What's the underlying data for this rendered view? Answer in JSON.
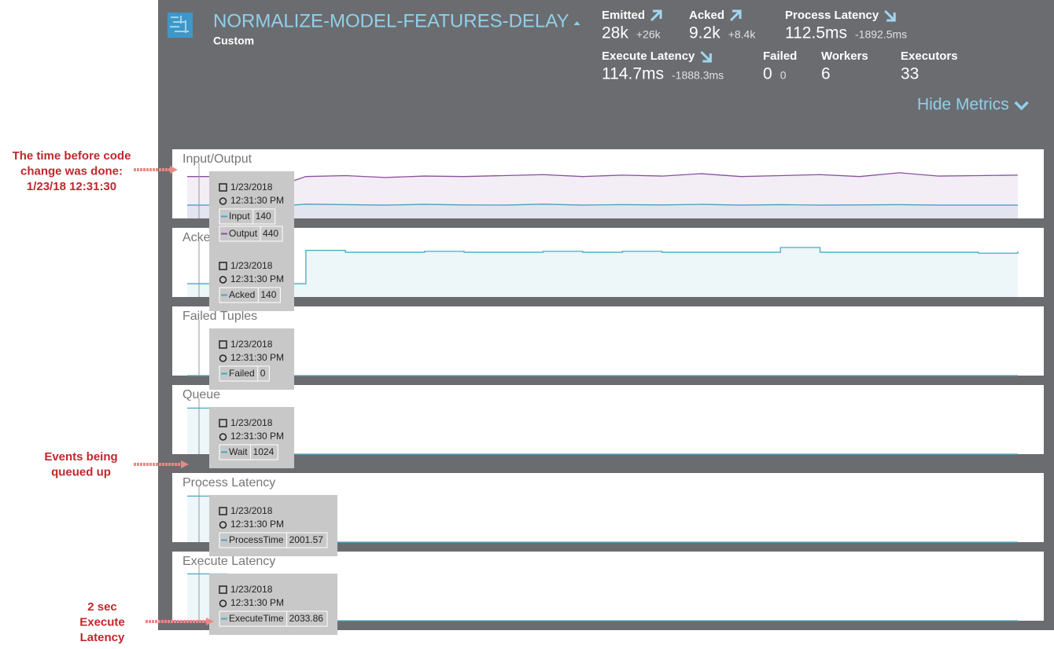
{
  "header": {
    "title": "NORMALIZE-MODEL-FEATURES-DELAY",
    "subtitle": "Custom",
    "toggle": "Hide Metrics"
  },
  "metrics": [
    {
      "label": "Emitted",
      "value": "28k",
      "delta": "+26k",
      "trend": "up"
    },
    {
      "label": "Acked",
      "value": "9.2k",
      "delta": "+8.4k",
      "trend": "up"
    },
    {
      "label": "Process Latency",
      "value": "112.5ms",
      "delta": "-1892.5ms",
      "trend": "down"
    },
    {
      "label": "Execute Latency",
      "value": "114.7ms",
      "delta": "-1888.3ms",
      "trend": "down"
    },
    {
      "label": "Failed",
      "value": "0",
      "delta": "0"
    },
    {
      "label": "Workers",
      "value": "6"
    },
    {
      "label": "Executors",
      "value": "33"
    }
  ],
  "panels": [
    {
      "title": "Input/Output",
      "tooltip": {
        "date": "1/23/2018",
        "time": "12:31:30 PM"
      },
      "ylim": [
        0,
        520
      ],
      "series": [
        {
          "name": "Input",
          "color": "#4aa8c4",
          "values": [
            140,
            140,
            120,
            150,
            145,
            140,
            148,
            142,
            140,
            150,
            140,
            145,
            142,
            148,
            140,
            145,
            140,
            142,
            145,
            140,
            140,
            140
          ]
        },
        {
          "name": "Output",
          "color": "#8a4fa0",
          "values": [
            440,
            440,
            300,
            440,
            450,
            430,
            445,
            440,
            450,
            460,
            440,
            455,
            445,
            470,
            440,
            450,
            460,
            440,
            480,
            445,
            450,
            455
          ]
        }
      ]
    },
    {
      "title": "Acked Tuples",
      "tooltip": {
        "date": "1/23/2018",
        "time": "12:31:30 PM"
      },
      "ylim": [
        0,
        520
      ],
      "step": true,
      "series": [
        {
          "name": "Acked",
          "color": "#4aa8c4",
          "values": [
            140,
            140,
            140,
            490,
            470,
            470,
            480,
            470,
            470,
            480,
            470,
            480,
            470,
            470,
            470,
            520,
            470,
            470,
            470,
            470,
            460,
            480
          ]
        }
      ]
    },
    {
      "title": "Failed Tuples",
      "tooltip": {
        "date": "1/23/2018",
        "time": "12:31:30 PM"
      },
      "ylim": [
        0,
        10
      ],
      "series": [
        {
          "name": "Failed",
          "color": "#4aa8c4",
          "values": [
            0,
            0,
            0,
            0,
            0,
            0,
            0,
            0,
            0,
            0,
            0,
            0,
            0,
            0,
            0,
            0,
            0,
            0,
            0,
            0,
            0,
            0
          ]
        }
      ]
    },
    {
      "title": "Queue",
      "tooltip": {
        "date": "1/23/2018",
        "time": "12:31:30 PM"
      },
      "ylim": [
        0,
        1100
      ],
      "series": [
        {
          "name": "Wait",
          "color": "#4aa8c4",
          "values": [
            1024,
            1024,
            0,
            0,
            0,
            0,
            0,
            0,
            0,
            0,
            0,
            0,
            0,
            0,
            0,
            0,
            0,
            0,
            0,
            0,
            0,
            0
          ]
        }
      ]
    },
    {
      "title": "Process Latency",
      "tooltip": {
        "date": "1/23/2018",
        "time": "12:31:30 PM"
      },
      "ylim": [
        0,
        2150
      ],
      "series": [
        {
          "name": "ProcessTime",
          "color": "#4aa8c4",
          "values": [
            2001.57,
            2001.57,
            0,
            0,
            0,
            0,
            0,
            0,
            0,
            0,
            0,
            0,
            0,
            0,
            0,
            0,
            0,
            0,
            0,
            0,
            0,
            0
          ]
        }
      ]
    },
    {
      "title": "Execute Latency",
      "tooltip": {
        "date": "1/23/2018",
        "time": "12:31:30 PM"
      },
      "ylim": [
        0,
        2150
      ],
      "series": [
        {
          "name": "ExecuteTime",
          "color": "#4aa8c4",
          "values": [
            2033.86,
            2033.86,
            0,
            0,
            0,
            0,
            0,
            0,
            0,
            0,
            0,
            0,
            0,
            0,
            0,
            0,
            0,
            0,
            0,
            0,
            0,
            0
          ]
        }
      ]
    }
  ],
  "annotations": [
    {
      "lines": [
        "The time before code",
        "change was done:",
        "1/23/18 12:31:30"
      ]
    },
    {
      "lines": [
        "Events being",
        "queued up"
      ]
    },
    {
      "lines": [
        "2 sec",
        "Execute",
        "Latency"
      ]
    }
  ]
}
